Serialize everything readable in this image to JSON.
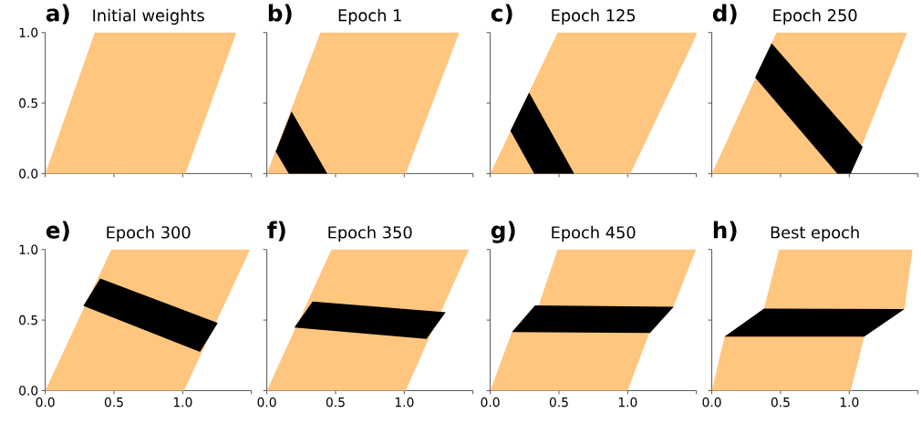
{
  "chart_data": [
    {
      "type": "area",
      "title": "Initial weights",
      "annotations": [
        "a)"
      ],
      "xlim": [
        0,
        1.5
      ],
      "ylim": [
        0,
        1
      ],
      "xticks": [
        0,
        0.5,
        1,
        {
          "value": 1.5,
          "label": null
        }
      ],
      "yticks": [
        {
          "value": 0,
          "label": "0.0"
        },
        {
          "value": 0.5,
          "label": "0.5"
        },
        {
          "value": 1,
          "label": "1.0"
        }
      ],
      "tick_labels": "y",
      "series": [
        {
          "color": "#ffc680",
          "x": [
            0,
            1.02,
            1.39,
            0.36
          ],
          "values": [
            0,
            0,
            1,
            1
          ]
        }
      ]
    },
    {
      "type": "area",
      "title": "Epoch 1",
      "annotations": [
        "b)"
      ],
      "xlim": [
        0,
        1.5
      ],
      "ylim": [
        0,
        1
      ],
      "xticks": [
        0,
        0.5,
        1,
        {
          "value": 1.5,
          "label": null
        }
      ],
      "yticks": [
        0,
        0.5,
        1
      ],
      "tick_labels": false,
      "series": [
        {
          "color": "#ffc680",
          "x": [
            0,
            1.01,
            1.4,
            0.39
          ],
          "values": [
            0,
            0,
            1,
            1
          ]
        },
        {
          "color": "#000000",
          "x": [
            0.065,
            0.16,
            0.44,
            0.18
          ],
          "values": [
            0.156,
            0,
            0,
            0.44
          ]
        }
      ]
    },
    {
      "type": "area",
      "title": "Epoch 125",
      "annotations": [
        "c)"
      ],
      "xlim": [
        0,
        1.5
      ],
      "ylim": [
        0,
        1
      ],
      "xticks": [
        0,
        0.5,
        1,
        {
          "value": 1.5,
          "label": null
        }
      ],
      "yticks": [
        0,
        0.5,
        1
      ],
      "tick_labels": false,
      "series": [
        {
          "color": "#ffc680",
          "x": [
            0,
            1.02,
            1.5,
            1.5,
            0.49
          ],
          "values": [
            0,
            0,
            0.98,
            1,
            1
          ]
        },
        {
          "color": "#000000",
          "x": [
            0.147,
            0.32,
            0.611,
            0.283
          ],
          "values": [
            0.303,
            0,
            0,
            0.574
          ]
        }
      ]
    },
    {
      "type": "area",
      "title": "Epoch 250",
      "annotations": [
        "d)"
      ],
      "xlim": [
        0,
        1.5
      ],
      "ylim": [
        0,
        1
      ],
      "xticks": [
        0,
        0.5,
        1,
        {
          "value": 1.5,
          "label": null
        }
      ],
      "yticks": [
        0,
        0.5,
        1
      ],
      "tick_labels": false,
      "series": [
        {
          "color": "#ffc680",
          "x": [
            0,
            1.01,
            1.42,
            0.47
          ],
          "values": [
            0,
            0,
            1,
            1
          ]
        },
        {
          "color": "#000000",
          "x": [
            0.315,
            0.913,
            1.011,
            1.098,
            0.435
          ],
          "values": [
            0.682,
            0,
            0,
            0.188,
            0.924
          ]
        }
      ]
    },
    {
      "type": "area",
      "title": "Epoch 300",
      "annotations": [
        "e)"
      ],
      "xlim": [
        0,
        1.5
      ],
      "ylim": [
        0,
        1
      ],
      "xticks": [
        {
          "value": 0,
          "label": "0.0"
        },
        {
          "value": 0.5,
          "label": "0.5"
        },
        {
          "value": 1,
          "label": "1.0"
        },
        {
          "value": 1.5,
          "label": null
        }
      ],
      "yticks": [
        {
          "value": 0,
          "label": "0.0"
        },
        {
          "value": 0.5,
          "label": "0.5"
        },
        {
          "value": 1,
          "label": "1.0"
        }
      ],
      "series": [
        {
          "color": "#ffc680",
          "x": [
            0,
            1.01,
            1.49,
            0.48
          ],
          "values": [
            0,
            0,
            1,
            1
          ]
        },
        {
          "color": "#000000",
          "x": [
            0.277,
            1.126,
            1.255,
            0.4
          ],
          "values": [
            0.6,
            0.275,
            0.48,
            0.794
          ]
        }
      ]
    },
    {
      "type": "area",
      "title": "Epoch 350",
      "annotations": [
        "f)"
      ],
      "xlim": [
        0,
        1.5
      ],
      "ylim": [
        0,
        1
      ],
      "xticks": [
        {
          "value": 0,
          "label": "0.0"
        },
        {
          "value": 0.5,
          "label": "0.5"
        },
        {
          "value": 1,
          "label": "1.0"
        },
        {
          "value": 1.5,
          "label": null
        }
      ],
      "yticks": [
        0,
        0.5,
        1
      ],
      "tick_labels": "x",
      "series": [
        {
          "color": "#ffc680",
          "x": [
            0,
            1.01,
            1.47,
            0.47
          ],
          "values": [
            0,
            0,
            1,
            1
          ]
        },
        {
          "color": "#000000",
          "x": [
            0.2,
            1.161,
            1.301,
            0.333
          ],
          "values": [
            0.448,
            0.366,
            0.556,
            0.632
          ]
        }
      ]
    },
    {
      "type": "area",
      "title": "Epoch 450",
      "annotations": [
        "g)"
      ],
      "xlim": [
        0,
        1.5
      ],
      "ylim": [
        0,
        1
      ],
      "xticks": [
        {
          "value": 0,
          "label": "0.0"
        },
        {
          "value": 0.5,
          "label": "0.5"
        },
        {
          "value": 1,
          "label": "1.0"
        },
        {
          "value": 1.5,
          "label": null
        }
      ],
      "yticks": [
        0,
        0.5,
        1
      ],
      "tick_labels": "x",
      "series": [
        {
          "color": "#ffc680",
          "x": [
            0,
            1.0,
            1.16,
            1.335,
            1.497,
            0.49,
            0.352,
            0.158
          ],
          "values": [
            0,
            0,
            0.415,
            0.6,
            1,
            1,
            0.6,
            0.415
          ]
        },
        {
          "color": "#000000",
          "x": [
            0.158,
            1.162,
            1.335,
            0.326
          ],
          "values": [
            0.415,
            0.409,
            0.595,
            0.604
          ]
        }
      ]
    },
    {
      "type": "area",
      "title": "Best epoch",
      "annotations": [
        "h)"
      ],
      "xlim": [
        0,
        1.5
      ],
      "ylim": [
        0,
        1
      ],
      "xticks": [
        {
          "value": 0,
          "label": "0.0"
        },
        {
          "value": 0.5,
          "label": "0.5"
        },
        {
          "value": 1,
          "label": "1.0"
        },
        {
          "value": 1.5,
          "label": null
        }
      ],
      "yticks": [
        0,
        0.5,
        1
      ],
      "tick_labels": "x",
      "series": [
        {
          "color": "#ffc680",
          "x": [
            0,
            1.011,
            1.109,
            1.402,
            1.46,
            0.489,
            0.38,
            0.093
          ],
          "values": [
            0,
            0,
            0.383,
            0.578,
            1,
            1,
            0.582,
            0.383
          ]
        },
        {
          "color": "#000000",
          "x": [
            0.093,
            1.109,
            1.402,
            0.38
          ],
          "values": [
            0.383,
            0.383,
            0.578,
            0.582
          ]
        }
      ]
    }
  ]
}
